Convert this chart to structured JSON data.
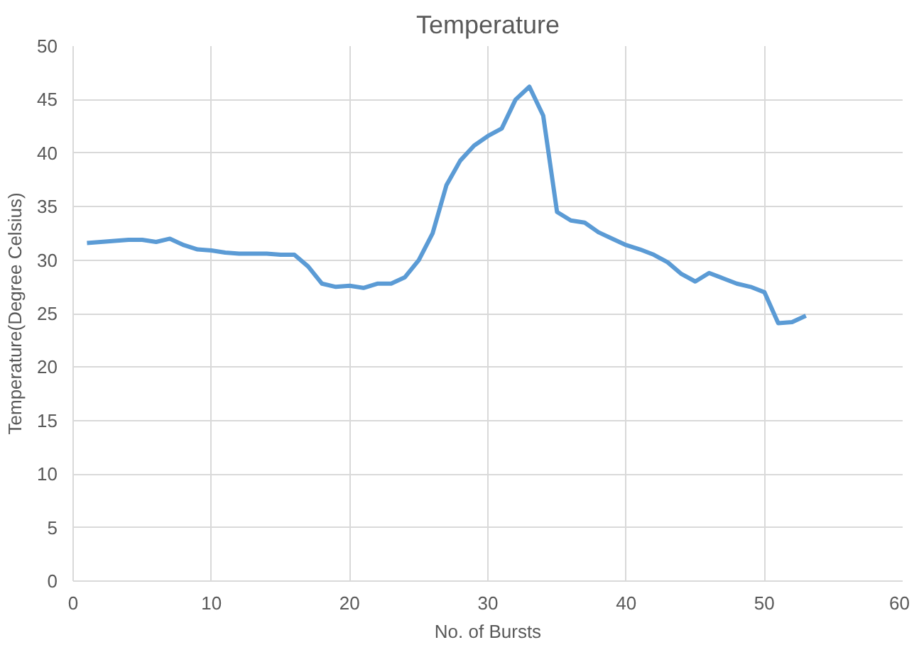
{
  "chart_data": {
    "type": "line",
    "title": "Temperature",
    "xlabel": "No. of Bursts",
    "ylabel": "Temperature(Degree Celsius)",
    "x": [
      1,
      2,
      3,
      4,
      5,
      6,
      7,
      8,
      9,
      10,
      11,
      12,
      13,
      14,
      15,
      16,
      17,
      18,
      19,
      20,
      21,
      22,
      23,
      24,
      25,
      26,
      27,
      28,
      29,
      30,
      31,
      32,
      33,
      34,
      35,
      36,
      37,
      38,
      39,
      40,
      41,
      42,
      43,
      44,
      45,
      46,
      47,
      48,
      49,
      50,
      51,
      52,
      53
    ],
    "series": [
      {
        "color": "#5b9bd5",
        "values": [
          31.6,
          31.7,
          31.8,
          31.9,
          31.9,
          31.7,
          32.0,
          31.4,
          31.0,
          30.9,
          30.7,
          30.6,
          30.6,
          30.6,
          30.5,
          30.5,
          29.4,
          27.8,
          27.5,
          27.6,
          27.4,
          27.8,
          27.8,
          28.4,
          30.0,
          32.5,
          37.0,
          39.3,
          40.7,
          41.6,
          42.3,
          45.0,
          46.2,
          43.5,
          34.5,
          33.7,
          33.5,
          32.6,
          32.0,
          31.4,
          31.0,
          30.5,
          29.8,
          28.7,
          28.0,
          28.8,
          28.3,
          27.8,
          27.5,
          27.0,
          24.1,
          24.2,
          24.8
        ]
      }
    ],
    "xlim": [
      0,
      60
    ],
    "xticks": [
      0,
      10,
      20,
      30,
      40,
      50,
      60
    ],
    "ylim": [
      0,
      50
    ],
    "yticks": [
      0,
      5,
      10,
      15,
      20,
      25,
      30,
      35,
      40,
      45,
      50
    ],
    "grid": true,
    "marker": "none",
    "line_style": "solid"
  }
}
